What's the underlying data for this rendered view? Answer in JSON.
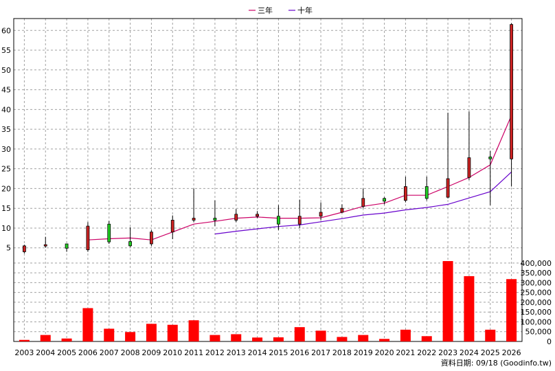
{
  "chart_data": {
    "type": "candlestick",
    "legend": {
      "placement": "top-center",
      "items": [
        {
          "name": "三年",
          "color": "#cc0066"
        },
        {
          "name": "十年",
          "color": "#6600cc"
        }
      ]
    },
    "price_axis": {
      "range": [
        2,
        63
      ],
      "ticks": [
        5,
        10,
        15,
        20,
        25,
        30,
        35,
        40,
        45,
        50,
        55,
        60
      ]
    },
    "volume_axis": {
      "range": [
        0,
        410000
      ],
      "ticks": [
        0,
        50000,
        100000,
        150000,
        200000,
        250000,
        300000,
        350000,
        400000
      ],
      "tick_labels": [
        "0",
        "50,000",
        "100,000",
        "150,000",
        "200,000",
        "250,000",
        "300,000",
        "350,000",
        "400,000"
      ]
    },
    "grid": true,
    "years": [
      "2003",
      "2004",
      "2005",
      "2006",
      "2007",
      "2008",
      "2009",
      "2010",
      "2011",
      "2012",
      "2013",
      "2014",
      "2015",
      "2016",
      "2017",
      "2018",
      "2019",
      "2020",
      "2021",
      "2022",
      "2023",
      "2024",
      "2025",
      "2026"
    ],
    "candles": [
      {
        "o": 5.5,
        "h": 5.8,
        "l": 3.6,
        "c": 4.0
      },
      {
        "o": 5.8,
        "h": 7.8,
        "l": 5.0,
        "c": 5.6
      },
      {
        "o": 4.9,
        "h": 6.0,
        "l": 4.0,
        "c": 6.0
      },
      {
        "o": 10.5,
        "h": 11.5,
        "l": 4.0,
        "c": 4.5
      },
      {
        "o": 6.5,
        "h": 11.8,
        "l": 6.0,
        "c": 11.0
      },
      {
        "o": 5.5,
        "h": 10.2,
        "l": 5.2,
        "c": 6.6
      },
      {
        "o": 9.0,
        "h": 9.5,
        "l": 5.5,
        "c": 6.0
      },
      {
        "o": 12.0,
        "h": 13.2,
        "l": 7.2,
        "c": 9.0
      },
      {
        "o": 12.5,
        "h": 20.0,
        "l": 11.5,
        "c": 12.0
      },
      {
        "o": 12.0,
        "h": 17.0,
        "l": 10.5,
        "c": 12.5
      },
      {
        "o": 13.5,
        "h": 14.8,
        "l": 11.5,
        "c": 12.0
      },
      {
        "o": 13.5,
        "h": 14.3,
        "l": 12.5,
        "c": 13.0
      },
      {
        "o": 11.0,
        "h": 15.8,
        "l": 9.5,
        "c": 13.0
      },
      {
        "o": 13.0,
        "h": 17.2,
        "l": 10.0,
        "c": 11.0
      },
      {
        "o": 14.0,
        "h": 16.5,
        "l": 12.0,
        "c": 13.0
      },
      {
        "o": 15.0,
        "h": 16.0,
        "l": 13.8,
        "c": 14.0
      },
      {
        "o": 17.5,
        "h": 20.0,
        "l": 15.0,
        "c": 15.5
      },
      {
        "o": 16.8,
        "h": 17.8,
        "l": 16.0,
        "c": 17.5
      },
      {
        "o": 20.5,
        "h": 23.0,
        "l": 16.5,
        "c": 17.0
      },
      {
        "o": 17.5,
        "h": 23.0,
        "l": 17.0,
        "c": 20.5
      },
      {
        "o": 22.5,
        "h": 39.2,
        "l": 17.5,
        "c": 17.8
      },
      {
        "o": 27.8,
        "h": 39.5,
        "l": 22.2,
        "c": 22.8
      },
      {
        "o": 27.5,
        "h": 29.5,
        "l": 15.8,
        "c": 28.0
      },
      {
        "o": 61.5,
        "h": 61.8,
        "l": 20.5,
        "c": 27.5
      }
    ],
    "series": [
      {
        "name": "三年",
        "values": [
          null,
          null,
          null,
          7.0,
          7.3,
          7.5,
          7.0,
          9.0,
          11.0,
          11.7,
          12.5,
          12.8,
          12.5,
          12.5,
          12.6,
          14.0,
          15.5,
          16.3,
          18.3,
          18.3,
          20.5,
          22.8,
          26.0,
          38.5
        ]
      },
      {
        "name": "十年",
        "values": [
          null,
          null,
          null,
          null,
          null,
          null,
          null,
          null,
          null,
          8.5,
          9.2,
          9.8,
          10.4,
          10.8,
          11.6,
          12.4,
          13.3,
          13.8,
          14.6,
          15.2,
          16.0,
          17.6,
          19.2,
          24.2
        ]
      }
    ],
    "volumes": [
      8000,
      33000,
      15000,
      170000,
      65000,
      48000,
      90000,
      85000,
      108000,
      33000,
      37000,
      20000,
      21000,
      73000,
      55000,
      23000,
      33000,
      13000,
      60000,
      27000,
      410000,
      333000,
      60000,
      318000
    ],
    "footer_text": "資料日期: 09/18  (Goodinfo.tw)"
  }
}
